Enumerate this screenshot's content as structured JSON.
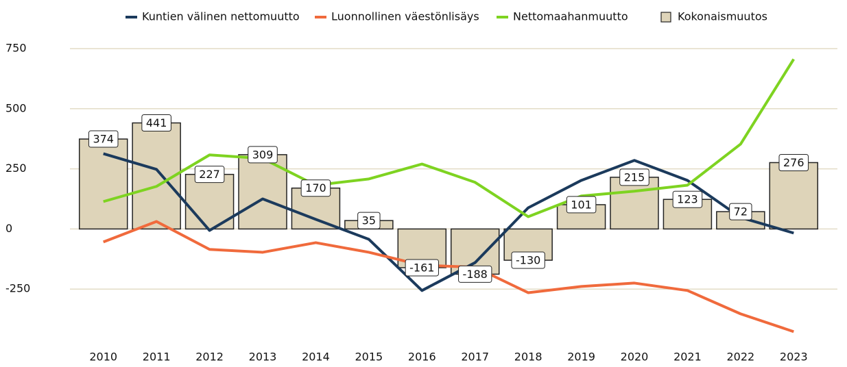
{
  "chart_data": {
    "type": "bar",
    "categories": [
      "2010",
      "2011",
      "2012",
      "2013",
      "2014",
      "2015",
      "2016",
      "2017",
      "2018",
      "2019",
      "2020",
      "2021",
      "2022",
      "2023"
    ],
    "series": [
      {
        "name": "Kuntien välinen nettomuutto",
        "type": "line",
        "color": "#1b3a5c",
        "values": [
          313,
          248,
          -6,
          125,
          40,
          -43,
          -256,
          -140,
          88,
          202,
          285,
          202,
          48,
          -17
        ]
      },
      {
        "name": "Luonnollinen väestönlisäys",
        "type": "line",
        "color": "#f06a3c",
        "values": [
          -54,
          31,
          -85,
          -97,
          -57,
          -97,
          -151,
          -159,
          -265,
          -239,
          -225,
          -256,
          -353,
          -427
        ]
      },
      {
        "name": "Nettomaahanmuutto",
        "type": "line",
        "color": "#7ed321",
        "values": [
          114,
          177,
          308,
          293,
          182,
          208,
          270,
          194,
          51,
          137,
          157,
          182,
          353,
          706
        ]
      },
      {
        "name": "Kokonaismuutos",
        "type": "bar",
        "color": "#ded4b9",
        "values": [
          374,
          441,
          227,
          309,
          170,
          35,
          -161,
          -188,
          -130,
          101,
          215,
          123,
          72,
          276
        ]
      }
    ],
    "ylim": [
      -500,
      750
    ],
    "yticks": [
      -250,
      0,
      250,
      500,
      750
    ],
    "grid": true,
    "legend": "top"
  }
}
